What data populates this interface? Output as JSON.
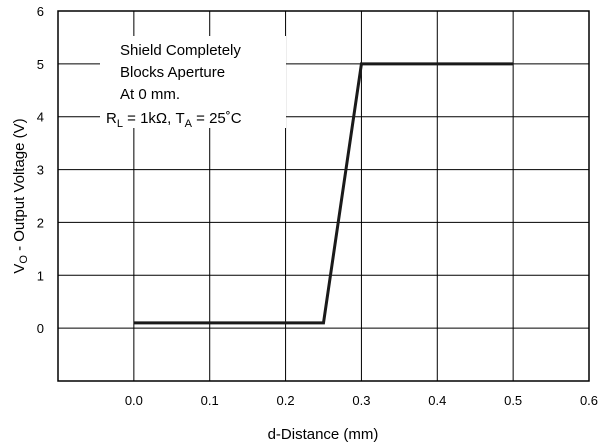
{
  "chart_data": {
    "type": "line",
    "xlabel": "d-Distance (mm)",
    "ylabel": {
      "main": "V",
      "sub": "O",
      "rest": " - Output Voltage (V)"
    },
    "xlim": [
      -0.1,
      0.6
    ],
    "ylim": [
      -1,
      6
    ],
    "x_ticks": [
      0.0,
      0.1,
      0.2,
      0.3,
      0.4,
      0.5,
      0.6
    ],
    "x_tick_labels": [
      "0.0",
      "0.1",
      "0.2",
      "0.3",
      "0.4",
      "0.5",
      "0.6"
    ],
    "y_ticks": [
      0,
      1,
      2,
      3,
      4,
      5,
      6
    ],
    "y_tick_labels": [
      "0",
      "1",
      "2",
      "3",
      "4",
      "5",
      "6"
    ],
    "grid": true,
    "series": [
      {
        "x": [
          0.0,
          0.25,
          0.3,
          0.5
        ],
        "y": [
          0.1,
          0.1,
          5.0,
          5.0
        ]
      }
    ],
    "annotation": {
      "line1": "Shield Completely",
      "line2": "Blocks Aperture",
      "line3": "At 0 mm.",
      "line4": {
        "r": "R",
        "r_sub": "L",
        "r_val": " = 1kΩ, T",
        "t_sub": "A",
        "t_val": " = 25˚C"
      }
    },
    "colors": {
      "line": "#1a1a1a",
      "grid": "#000000"
    }
  }
}
